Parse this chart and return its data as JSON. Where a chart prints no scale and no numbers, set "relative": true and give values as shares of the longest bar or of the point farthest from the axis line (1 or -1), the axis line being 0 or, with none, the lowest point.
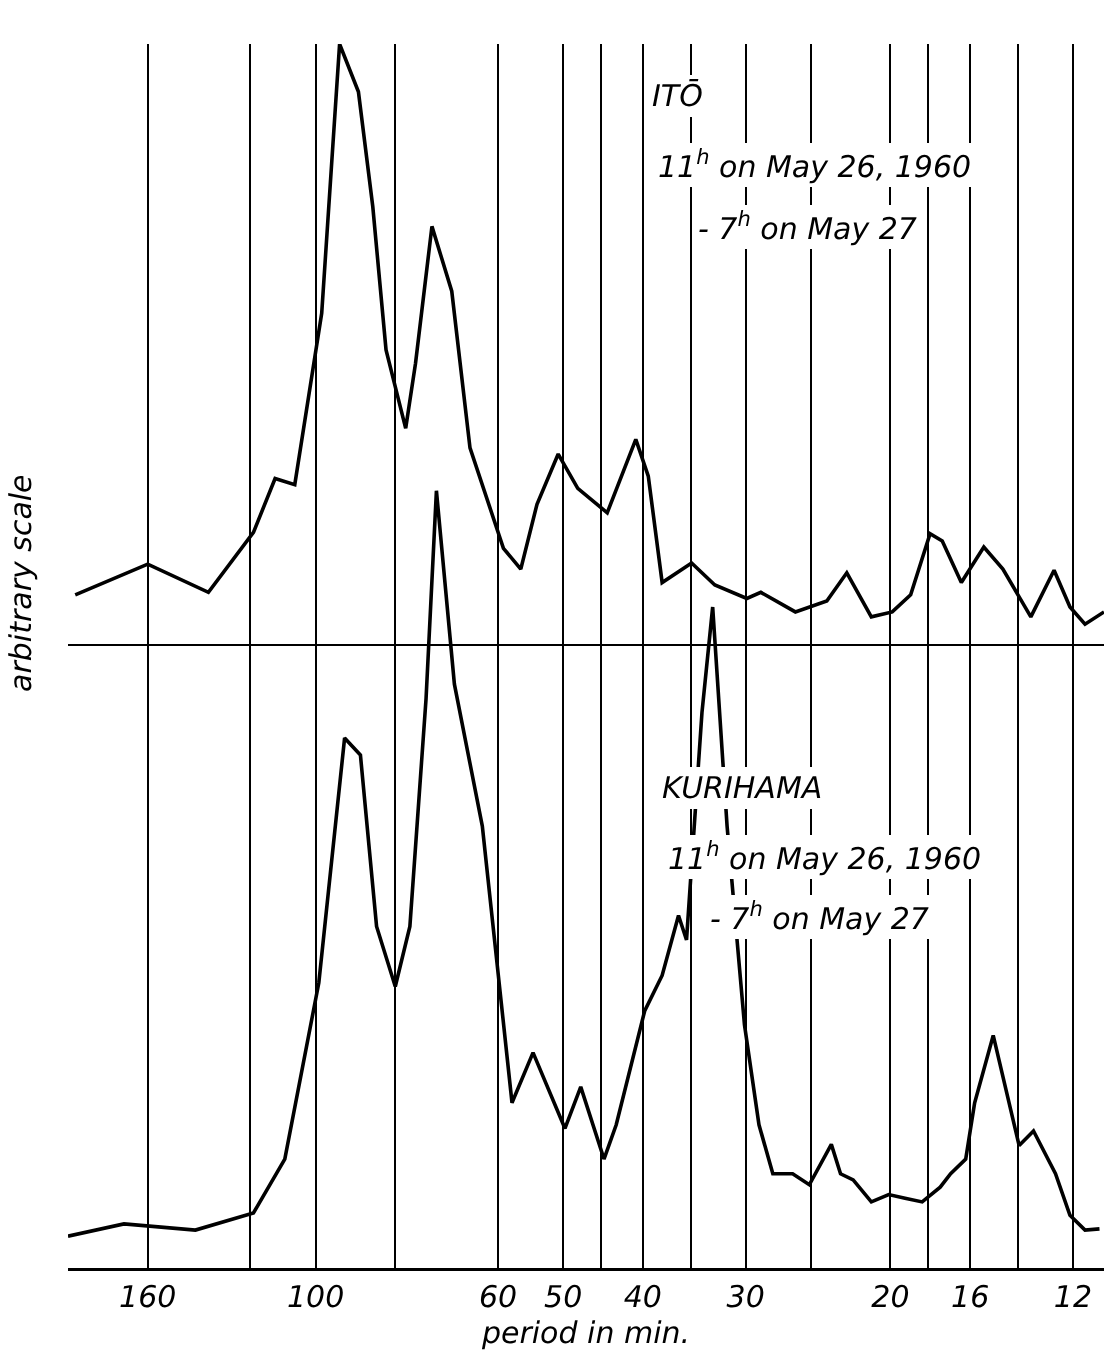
{
  "chart_data": {
    "type": "line",
    "relative": true,
    "log": "x",
    "xlabel": "period in min.",
    "ylabel": "arbitrary scale",
    "annotations": [
      "ITŌ",
      "11$^{h}$ on May 26, 1960",
      "- 7$^{h}$ on May 27",
      "KURIHAMA",
      "11$^{h}$ on May 26, 1960",
      "- 7$^{h}$ on May 27"
    ],
    "xlim": [
      200,
      11
    ],
    "xticks": [
      160,
      {
        "value": 120,
        "label": null
      },
      100,
      {
        "value": 80,
        "label": null
      },
      60,
      50,
      {
        "value": 45,
        "label": null
      },
      40,
      {
        "value": 35,
        "label": null
      },
      30,
      {
        "value": 25,
        "label": null
      },
      20,
      {
        "value": 18,
        "label": null
      },
      16,
      {
        "value": 14,
        "label": null
      },
      12
    ],
    "grid": "x",
    "legend": false,
    "marker": "none",
    "line_style": "solid",
    "ref_lines": [
      {
        "axis": "y",
        "value": 0.509,
        "color": "#000000"
      }
    ],
    "series": [
      {
        "color": "#000000",
        "x": [
          196,
          160,
          135,
          119,
          112,
          106,
          98.3,
          93.5,
          88.7,
          85.2,
          82.1,
          77.7,
          75.6,
          72.2,
          68.3,
          64.9,
          59.1,
          56.3,
          53.8,
          50.7,
          48,
          44.2,
          40.8,
          39.4,
          37.9,
          34.9,
          32.7,
          29.9,
          28.75,
          26.1,
          23.9,
          22.6,
          21.1,
          19.9,
          18.9,
          17.9,
          17.3,
          16.4,
          15.4,
          14.6,
          13.5,
          12.65,
          12.1,
          11.6,
          11
        ],
        "values": [
          0.55,
          0.575,
          0.552,
          0.601,
          0.645,
          0.64,
          0.78,
          1,
          0.961,
          0.867,
          0.75,
          0.686,
          0.739,
          0.851,
          0.798,
          0.67,
          0.588,
          0.571,
          0.624,
          0.665,
          0.637,
          0.617,
          0.677,
          0.647,
          0.56,
          0.576,
          0.558,
          0.547,
          0.552,
          0.536,
          0.545,
          0.568,
          0.532,
          0.536,
          0.55,
          0.6,
          0.594,
          0.56,
          0.589,
          0.571,
          0.532,
          0.57,
          0.54,
          0.526,
          0.536
        ]
      },
      {
        "color": "#000000",
        "x": [
          200,
          171,
          140,
          119,
          109,
          99.1,
          92.2,
          88.2,
          84.3,
          80,
          76.8,
          73.4,
          71.3,
          67.8,
          62.7,
          57.7,
          54.4,
          49.75,
          47.6,
          44.6,
          43.1,
          39.8,
          37.9,
          36.2,
          35.4,
          33.9,
          32.9,
          31.6,
          30.1,
          28.9,
          27.8,
          26.3,
          25.1,
          23.6,
          23.0,
          22.2,
          21.1,
          20.1,
          19.2,
          18.3,
          17.4,
          16.9,
          16.2,
          15.8,
          15.0,
          13.95,
          13.4,
          12.6,
          12.1,
          11.6,
          11.14
        ],
        "values": [
          0.026,
          0.036,
          0.031,
          0.045,
          0.089,
          0.233,
          0.433,
          0.419,
          0.279,
          0.23,
          0.279,
          0.465,
          0.635,
          0.477,
          0.361,
          0.135,
          0.176,
          0.114,
          0.148,
          0.089,
          0.117,
          0.21,
          0.239,
          0.288,
          0.268,
          0.454,
          0.54,
          0.361,
          0.199,
          0.117,
          0.077,
          0.077,
          0.068,
          0.101,
          0.077,
          0.072,
          0.054,
          0.06,
          0.057,
          0.054,
          0.066,
          0.077,
          0.089,
          0.135,
          0.19,
          0.1,
          0.112,
          0.077,
          0.043,
          0.031,
          0.032
        ]
      }
    ]
  }
}
